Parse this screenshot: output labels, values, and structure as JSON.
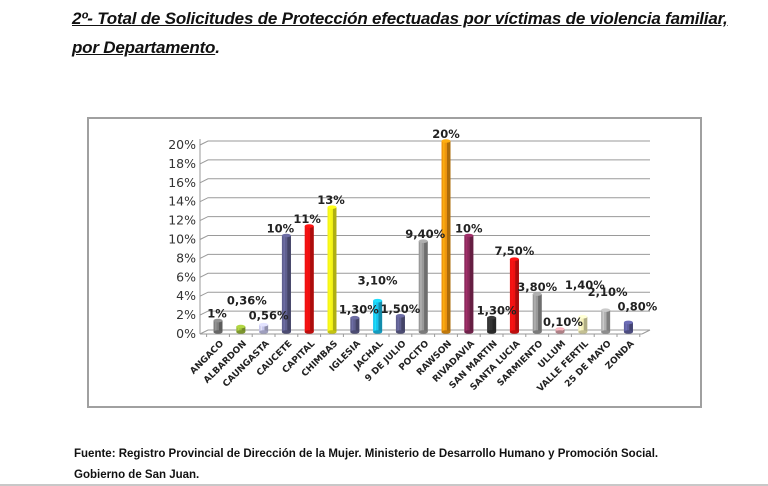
{
  "document": {
    "heading_line1": "2º- Total de Solicitudes de Protección efectuadas por víctimas de violencia familiar,",
    "heading_line2": "por Departamento",
    "heading_period": ".",
    "source_line1": "Fuente: Registro Provincial de Dirección de la Mujer. Ministerio de Desarrollo Humano y Promoción Social.",
    "source_line2": "Gobierno de San Juan."
  },
  "chart_data": {
    "type": "bar",
    "title": "",
    "xlabel": "",
    "ylabel": "",
    "ylim": [
      0,
      20
    ],
    "yticks": [
      "0%",
      "2%",
      "4%",
      "6%",
      "8%",
      "10%",
      "12%",
      "14%",
      "16%",
      "18%",
      "20%"
    ],
    "grid": true,
    "legend": "none",
    "categories": [
      "ANGACO",
      "ALBARDON",
      "CAUNGASTA",
      "CAUCETE",
      "CAPITAL",
      "CHIMBAS",
      "IGLESIA",
      "JACHAL",
      "9 DE JULIO",
      "POCITO",
      "RAWSON",
      "RIVADAVIA",
      "SAN MARTIN",
      "SANTA LUCIA",
      "SARMIENTO",
      "ULLUM",
      "VALLE FERTIL",
      "25 DE MAYO",
      "ZONDA"
    ],
    "values": [
      1,
      0.36,
      0.56,
      10,
      11,
      13,
      1.3,
      3.1,
      1.5,
      9.4,
      20,
      10,
      1.3,
      7.5,
      3.8,
      0.1,
      1.4,
      2.1,
      0.8
    ],
    "data_labels": [
      "1%",
      "0,36%",
      "0,56%",
      "10%",
      "11%",
      "13%",
      "1,30%",
      "3,10%",
      "1,50%",
      "9,40%",
      "20%",
      "10%",
      "1,30%",
      "7,50%",
      "3,80%",
      "0,10%",
      "1,40%",
      "2,10%",
      "0,80%"
    ],
    "colors": [
      "#808080",
      "#9bbb3a",
      "#c5c5ec",
      "#5f5f8f",
      "#ee1111",
      "#f5f517",
      "#5f5f8f",
      "#19c2ee",
      "#5f5f8f",
      "#999999",
      "#f0960e",
      "#8c2a5c",
      "#333333",
      "#ee1111",
      "#999999",
      "#d9a0a8",
      "#f5f0b8",
      "#b0b0b0",
      "#5f5f9f"
    ]
  }
}
